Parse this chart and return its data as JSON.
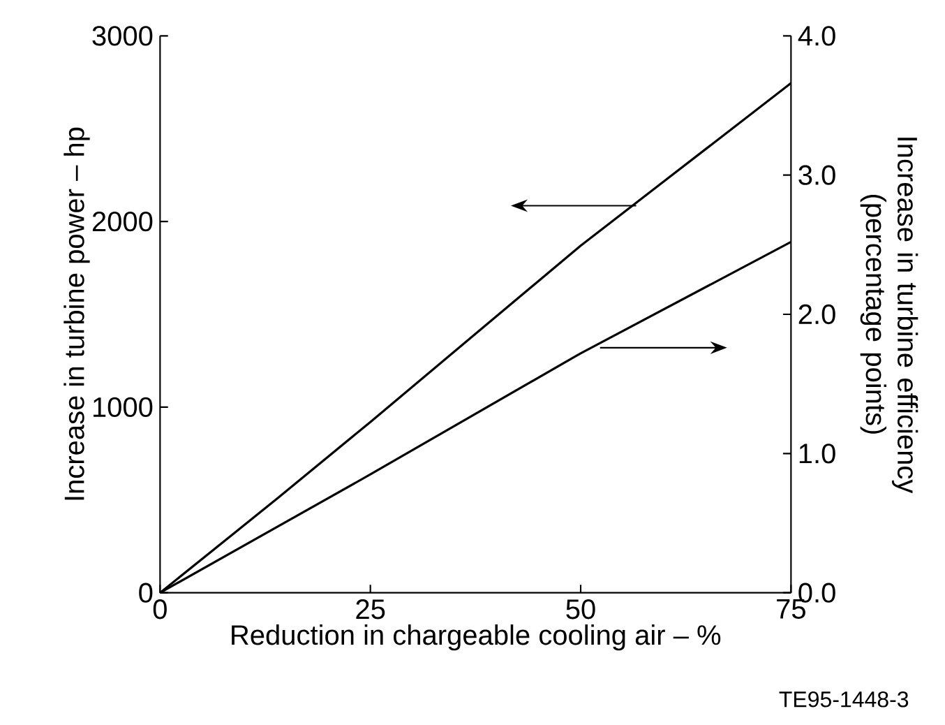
{
  "chart_data": {
    "type": "line",
    "xlabel": "Reduction in chargeable cooling air – %",
    "ylabel": "Increase in turbine power – hp",
    "y2label": "Increase in turbine efficiency (percentage points)",
    "x": [
      0,
      14,
      25,
      50,
      75
    ],
    "series": [
      {
        "color": "#000000",
        "values": [
          0,
          510,
          920,
          1870,
          2745
        ]
      },
      {
        "color": "#000000",
        "axis": "y2",
        "x": [
          0,
          25,
          50,
          75
        ],
        "values": [
          0,
          0.85,
          1.72,
          2.52
        ]
      }
    ],
    "xlim": [
      0,
      75
    ],
    "xticks": [
      0,
      25,
      50,
      75
    ],
    "ylim": [
      0,
      3000
    ],
    "yticks": [
      0,
      1000,
      2000,
      3000
    ],
    "y2lim": [
      0,
      4
    ],
    "y2ticks": [
      {
        "value": 0,
        "label": "0.0"
      },
      {
        "value": 1,
        "label": "1.0"
      },
      {
        "value": 2,
        "label": "2.0"
      },
      {
        "value": 3,
        "label": "3.0"
      },
      {
        "value": 4,
        "label": "4.0"
      }
    ],
    "grid": false,
    "marker": "none",
    "line_style": "solid",
    "annotations": [
      "TE95-1448-3"
    ]
  }
}
